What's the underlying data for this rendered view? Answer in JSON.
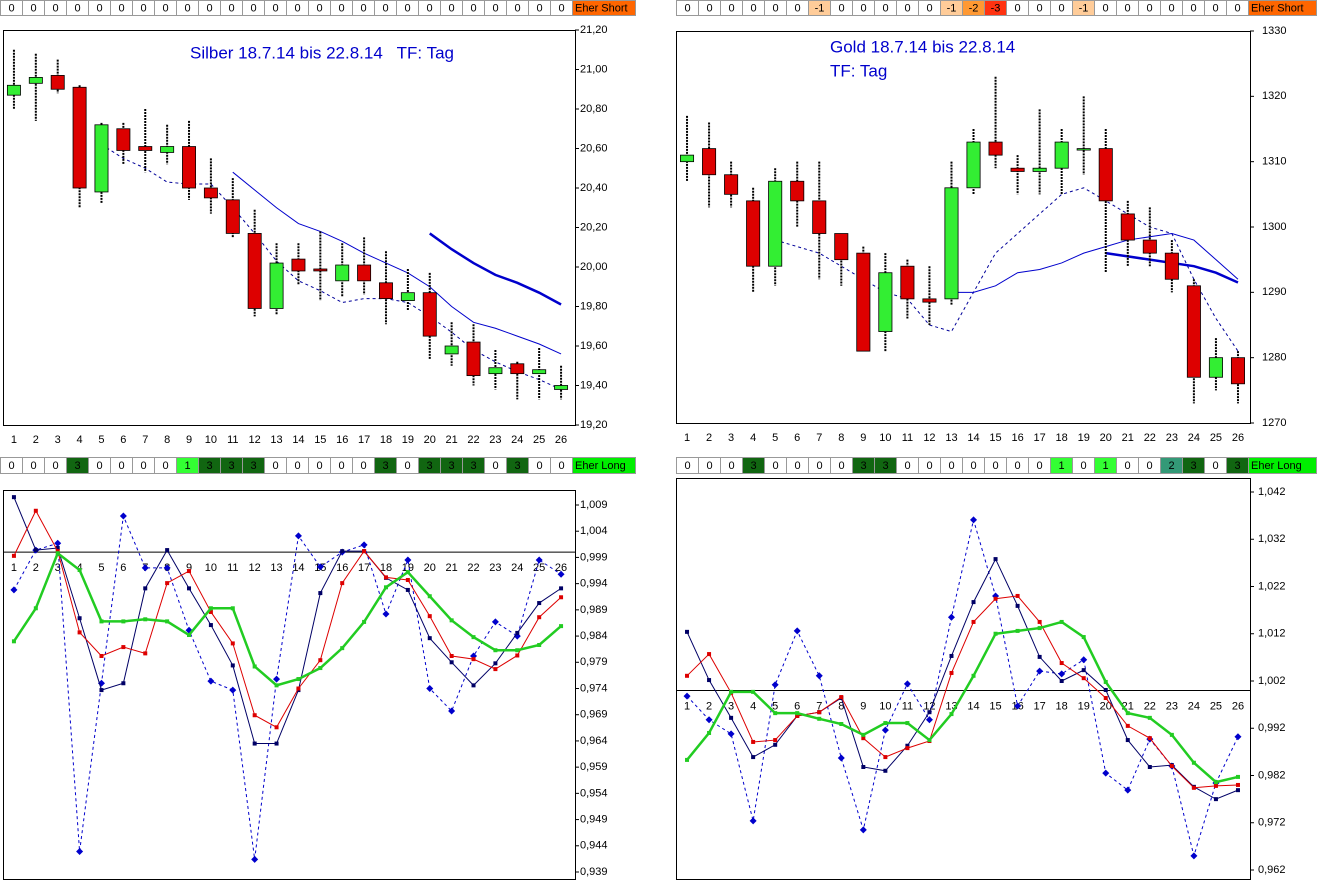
{
  "chart_data": [
    {
      "type": "candlestick",
      "title": "Silber 18.7.14 bis 22.8.14   TF: Tag",
      "categories": [
        1,
        2,
        3,
        4,
        5,
        6,
        7,
        8,
        9,
        10,
        11,
        12,
        13,
        14,
        15,
        16,
        17,
        18,
        19,
        20,
        21,
        22,
        23,
        24,
        25,
        26
      ],
      "open": [
        20.87,
        20.93,
        20.97,
        20.91,
        20.38,
        20.7,
        20.61,
        20.58,
        20.61,
        20.4,
        20.34,
        20.17,
        19.79,
        20.04,
        19.99,
        19.93,
        20.01,
        19.92,
        19.83,
        19.87,
        19.56,
        19.62,
        19.46,
        19.51,
        19.46,
        19.38
      ],
      "high": [
        21.1,
        21.08,
        21.05,
        20.92,
        20.73,
        20.73,
        20.8,
        20.72,
        20.74,
        20.55,
        20.45,
        20.29,
        20.12,
        20.12,
        20.18,
        20.12,
        20.15,
        20.08,
        19.99,
        19.97,
        19.72,
        19.71,
        19.58,
        19.52,
        19.59,
        19.5
      ],
      "low": [
        20.8,
        20.74,
        20.88,
        20.3,
        20.32,
        20.52,
        20.48,
        20.52,
        20.34,
        20.27,
        20.15,
        19.75,
        19.76,
        19.91,
        19.83,
        19.85,
        19.86,
        19.71,
        19.78,
        19.53,
        19.5,
        19.4,
        19.38,
        19.33,
        19.33,
        19.33
      ],
      "close": [
        20.92,
        20.96,
        20.9,
        20.4,
        20.72,
        20.59,
        20.59,
        20.61,
        20.4,
        20.35,
        20.17,
        19.79,
        20.02,
        19.98,
        19.98,
        20.01,
        19.93,
        19.84,
        19.87,
        19.65,
        19.6,
        19.45,
        19.49,
        19.46,
        19.48,
        19.4
      ],
      "up_color": "#33ee33",
      "down_color": "#dd0000",
      "lines": [
        {
          "color": "#000099",
          "dashed": true,
          "width": 1,
          "values": [
            null,
            null,
            null,
            null,
            20.62,
            20.55,
            20.5,
            20.43,
            20.42,
            20.42,
            20.3,
            20.17,
            20.03,
            19.93,
            19.88,
            19.82,
            19.84,
            19.84,
            19.82,
            19.75,
            19.67,
            19.58,
            19.52,
            19.47,
            19.43,
            19.38
          ]
        },
        {
          "color": "#0000cc",
          "dashed": false,
          "width": 1,
          "values": [
            null,
            null,
            null,
            null,
            null,
            null,
            null,
            null,
            null,
            null,
            20.48,
            20.39,
            20.3,
            20.22,
            20.18,
            20.13,
            20.07,
            20.02,
            19.97,
            19.9,
            19.8,
            19.72,
            19.69,
            19.65,
            19.61,
            19.56
          ]
        },
        {
          "color": "#0000cc",
          "dashed": false,
          "width": 2.5,
          "values": [
            null,
            null,
            null,
            null,
            null,
            null,
            null,
            null,
            null,
            null,
            null,
            null,
            null,
            null,
            null,
            null,
            null,
            null,
            null,
            20.17,
            20.09,
            20.02,
            19.96,
            19.92,
            19.87,
            19.81
          ]
        }
      ],
      "ylim": [
        19.2,
        21.2
      ],
      "yticks": [
        {
          "value": 21.2,
          "label": "21,20"
        },
        {
          "value": 21.0,
          "label": "21,00"
        },
        {
          "value": 20.8,
          "label": "20,80"
        },
        {
          "value": 20.6,
          "label": "20,60"
        },
        {
          "value": 20.4,
          "label": "20,40"
        },
        {
          "value": 20.2,
          "label": "20,20"
        },
        {
          "value": 20.0,
          "label": "20,00"
        },
        {
          "value": 19.8,
          "label": "19,80"
        },
        {
          "value": 19.6,
          "label": "19,60"
        },
        {
          "value": 19.4,
          "label": "19,40"
        },
        {
          "value": 19.2,
          "label": "19,20"
        }
      ],
      "signals": {
        "values": [
          0,
          0,
          0,
          0,
          0,
          0,
          0,
          0,
          0,
          0,
          0,
          0,
          0,
          0,
          0,
          0,
          0,
          0,
          0,
          0,
          0,
          0,
          0,
          0,
          0,
          0
        ],
        "label": "Eher Short",
        "label_color": "#ff6600"
      }
    },
    {
      "type": "candlestick",
      "title": "Gold 18.7.14 bis 22.8.14",
      "subtitle": "TF: Tag",
      "categories": [
        1,
        2,
        3,
        4,
        5,
        6,
        7,
        8,
        9,
        10,
        11,
        12,
        13,
        14,
        15,
        16,
        17,
        18,
        19,
        20,
        21,
        22,
        23,
        24,
        25,
        26
      ],
      "open": [
        1310,
        1312,
        1308,
        1304,
        1294,
        1307,
        1304,
        1299,
        1296,
        1284,
        1294,
        1289,
        1289,
        1306,
        1313,
        1309,
        1308.5,
        1309,
        1312,
        1312,
        1302,
        1298,
        1296,
        1291,
        1277,
        1280
      ],
      "high": [
        1317,
        1316,
        1310,
        1306,
        1309,
        1310,
        1310,
        1299,
        1297,
        1296,
        1295,
        1294,
        1310,
        1315,
        1323,
        1311,
        1318,
        1315,
        1320,
        1315,
        1304,
        1303,
        1298,
        1292,
        1283,
        1281
      ],
      "low": [
        1307,
        1303,
        1303,
        1290,
        1291,
        1300,
        1292,
        1291,
        1281,
        1281,
        1286,
        1285,
        1288,
        1305,
        1309,
        1305,
        1305,
        1305,
        1308,
        1293,
        1294,
        1294,
        1290,
        1273,
        1275,
        1273
      ],
      "close": [
        1311,
        1308,
        1305,
        1294,
        1307,
        1304,
        1299,
        1295,
        1281,
        1293,
        1289,
        1288.5,
        1306,
        1313,
        1311,
        1308.5,
        1309,
        1313,
        1312,
        1304,
        1298,
        1296,
        1292,
        1277,
        1280,
        1276
      ],
      "up_color": "#33ee33",
      "down_color": "#dd0000",
      "lines": [
        {
          "color": "#000099",
          "dashed": true,
          "width": 1,
          "values": [
            null,
            null,
            null,
            null,
            1298,
            1297,
            1296,
            1294,
            1292,
            1290,
            1289,
            1285,
            1284,
            1290,
            1296,
            1299,
            1302,
            1305,
            1306,
            1304,
            1302,
            1300,
            1299,
            1292,
            1286,
            1281
          ]
        },
        {
          "color": "#0000cc",
          "dashed": false,
          "width": 1,
          "values": [
            null,
            null,
            null,
            null,
            null,
            null,
            null,
            null,
            null,
            null,
            null,
            null,
            1290,
            1290,
            1291,
            1293,
            1293.5,
            1294.5,
            1296,
            1297,
            1298,
            1298.5,
            1299,
            1298,
            1295,
            1292
          ]
        },
        {
          "color": "#0000cc",
          "dashed": false,
          "width": 2.5,
          "values": [
            null,
            null,
            null,
            null,
            null,
            null,
            null,
            null,
            null,
            null,
            null,
            null,
            null,
            null,
            null,
            null,
            null,
            null,
            null,
            1296,
            1295.5,
            1295,
            1294.5,
            1294,
            1293,
            1291.5
          ]
        }
      ],
      "ylim": [
        1270,
        1330
      ],
      "yticks": [
        1330,
        1320,
        1310,
        1300,
        1290,
        1280,
        1270
      ],
      "signals": {
        "values": [
          0,
          0,
          0,
          0,
          0,
          0,
          -1,
          0,
          0,
          0,
          0,
          0,
          -1,
          -2,
          -3,
          0,
          0,
          0,
          -1,
          0,
          0,
          0,
          0,
          0,
          0,
          0
        ],
        "label": "Eher Short",
        "label_color": "#ff6600"
      }
    },
    {
      "type": "line",
      "categories": [
        1,
        2,
        3,
        4,
        5,
        6,
        7,
        8,
        9,
        10,
        11,
        12,
        13,
        14,
        15,
        16,
        17,
        18,
        19,
        20,
        21,
        22,
        23,
        24,
        25,
        26
      ],
      "x_axis_at": 1,
      "series": [
        {
          "color": "#0000cc",
          "dashed": true,
          "width": 1,
          "marker": "diamond",
          "values": [
            0.9928,
            1.0004,
            1.0017,
            0.9429,
            0.975,
            1.0069,
            0.997,
            0.997,
            0.9851,
            0.9754,
            0.9737,
            0.9414,
            0.9758,
            1.0031,
            0.9972,
            1.0,
            1.0014,
            0.9882,
            0.9985,
            0.974,
            0.9697,
            0.9802,
            0.9867,
            0.984,
            0.9985,
            0.9958
          ]
        },
        {
          "color": "#000066",
          "dashed": false,
          "width": 1,
          "marker": "square",
          "values": [
            1.0105,
            1.0004,
            1.0008,
            0.9874,
            0.9737,
            0.975,
            0.9931,
            1.0004,
            0.9931,
            0.9861,
            0.9784,
            0.9635,
            0.9635,
            0.9737,
            0.9922,
            1.0002,
            1.0002,
            0.9951,
            0.9928,
            0.9836,
            0.979,
            0.9746,
            0.9788,
            0.9846,
            0.9903,
            0.9931
          ]
        },
        {
          "color": "#dd0000",
          "dashed": false,
          "width": 1,
          "marker": "square",
          "values": [
            0.9993,
            1.0079,
            1.0002,
            0.9847,
            0.9802,
            0.9819,
            0.9807,
            0.9941,
            0.9964,
            0.9886,
            0.9826,
            0.9689,
            0.9666,
            0.974,
            0.9794,
            0.9941,
            1.0002,
            0.9952,
            0.9947,
            0.9878,
            0.9802,
            0.9796,
            0.9777,
            0.9803,
            0.9876,
            0.9914
          ]
        },
        {
          "color": "#22cc22",
          "dashed": false,
          "width": 2.5,
          "marker": "square",
          "values": [
            0.983,
            0.9893,
            0.9998,
            0.9966,
            0.9868,
            0.9868,
            0.9872,
            0.9868,
            0.9842,
            0.9893,
            0.9893,
            0.9782,
            0.9746,
            0.9758,
            0.9779,
            0.9817,
            0.9867,
            0.9933,
            0.9962,
            0.9916,
            0.987,
            0.9838,
            0.9813,
            0.9813,
            0.9823,
            0.9859
          ]
        }
      ],
      "ylim": [
        0.939,
        1.009
      ],
      "yticks": [
        {
          "value": 1.009,
          "label": "1,009"
        },
        {
          "value": 1.004,
          "label": "1,004"
        },
        {
          "value": 0.999,
          "label": "0,999"
        },
        {
          "value": 0.994,
          "label": "0,994"
        },
        {
          "value": 0.989,
          "label": "0,989"
        },
        {
          "value": 0.984,
          "label": "0,984"
        },
        {
          "value": 0.979,
          "label": "0,979"
        },
        {
          "value": 0.974,
          "label": "0,974"
        },
        {
          "value": 0.969,
          "label": "0,969"
        },
        {
          "value": 0.964,
          "label": "0,964"
        },
        {
          "value": 0.959,
          "label": "0,959"
        },
        {
          "value": 0.954,
          "label": "0,954"
        },
        {
          "value": 0.949,
          "label": "0,949"
        },
        {
          "value": 0.944,
          "label": "0,944"
        },
        {
          "value": 0.939,
          "label": "0,939"
        }
      ],
      "signals": {
        "values": [
          0,
          0,
          0,
          3,
          0,
          0,
          0,
          0,
          1,
          3,
          3,
          3,
          0,
          0,
          0,
          0,
          0,
          3,
          0,
          3,
          3,
          3,
          0,
          3,
          0,
          0
        ],
        "label": "Eher Long",
        "label_color": "#00ee00"
      }
    },
    {
      "type": "line",
      "categories": [
        1,
        2,
        3,
        4,
        5,
        6,
        7,
        8,
        9,
        10,
        11,
        12,
        13,
        14,
        15,
        16,
        17,
        18,
        19,
        20,
        21,
        22,
        23,
        24,
        25,
        26
      ],
      "x_axis_at": 1,
      "series": [
        {
          "color": "#0000cc",
          "dashed": true,
          "width": 1,
          "marker": "diamond",
          "values": [
            0.9988,
            0.9938,
            0.9908,
            0.9724,
            1.0012,
            1.0126,
            1.0031,
            0.9857,
            0.9705,
            0.9916,
            1.0014,
            0.9938,
            1.0155,
            1.0361,
            1.02,
            0.9967,
            1.0041,
            1.0035,
            1.0065,
            0.9825,
            0.9789,
            0.9897,
            0.984,
            0.965,
            0.9804,
            0.9902
          ]
        },
        {
          "color": "#000066",
          "dashed": false,
          "width": 1,
          "marker": "square",
          "values": [
            1.0124,
            1.0022,
            0.9942,
            0.9859,
            0.9885,
            0.9946,
            0.9954,
            0.9984,
            0.9838,
            0.983,
            0.9883,
            0.9954,
            1.0073,
            1.0187,
            1.0278,
            1.0179,
            1.0071,
            1.002,
            1.0043,
            1.0001,
            0.9895,
            0.9838,
            0.9842,
            0.9796,
            0.977,
            0.9789
          ]
        },
        {
          "color": "#dd0000",
          "dashed": false,
          "width": 1,
          "marker": "square",
          "values": [
            1.0031,
            1.0077,
            0.9995,
            0.9891,
            0.9895,
            0.9946,
            0.9954,
            0.9986,
            0.9899,
            0.9859,
            0.9878,
            0.9893,
            1.0037,
            1.0145,
            1.0194,
            1.02,
            1.0145,
            1.0058,
            1.0026,
            0.9984,
            0.9925,
            0.9899,
            0.984,
            0.9794,
            0.9798,
            0.98
          ]
        },
        {
          "color": "#22cc22",
          "dashed": false,
          "width": 2.5,
          "marker": "square",
          "values": [
            0.9853,
            0.991,
            0.9997,
            0.9997,
            0.9952,
            0.9952,
            0.994,
            0.9929,
            0.9906,
            0.9931,
            0.9931,
            0.9895,
            0.995,
            1.0031,
            1.012,
            1.0126,
            1.0132,
            1.0145,
            1.0113,
            1.0018,
            0.9952,
            0.9942,
            0.9906,
            0.9847,
            0.9806,
            0.9817
          ]
        }
      ],
      "ylim": [
        0.962,
        1.042
      ],
      "yticks": [
        {
          "value": 1.042,
          "label": "1,042"
        },
        {
          "value": 1.032,
          "label": "1,032"
        },
        {
          "value": 1.022,
          "label": "1,022"
        },
        {
          "value": 1.012,
          "label": "1,012"
        },
        {
          "value": 1.002,
          "label": "1,002"
        },
        {
          "value": 0.992,
          "label": "0,992"
        },
        {
          "value": 0.982,
          "label": "0,982"
        },
        {
          "value": 0.972,
          "label": "0,972"
        },
        {
          "value": 0.962,
          "label": "0,962"
        }
      ],
      "signals": {
        "values": [
          0,
          0,
          0,
          3,
          0,
          0,
          0,
          0,
          3,
          3,
          0,
          0,
          0,
          0,
          0,
          0,
          0,
          1,
          0,
          1,
          0,
          0,
          2,
          3,
          0,
          3
        ],
        "label": "Eher Long",
        "label_color": "#00ee00"
      }
    }
  ]
}
